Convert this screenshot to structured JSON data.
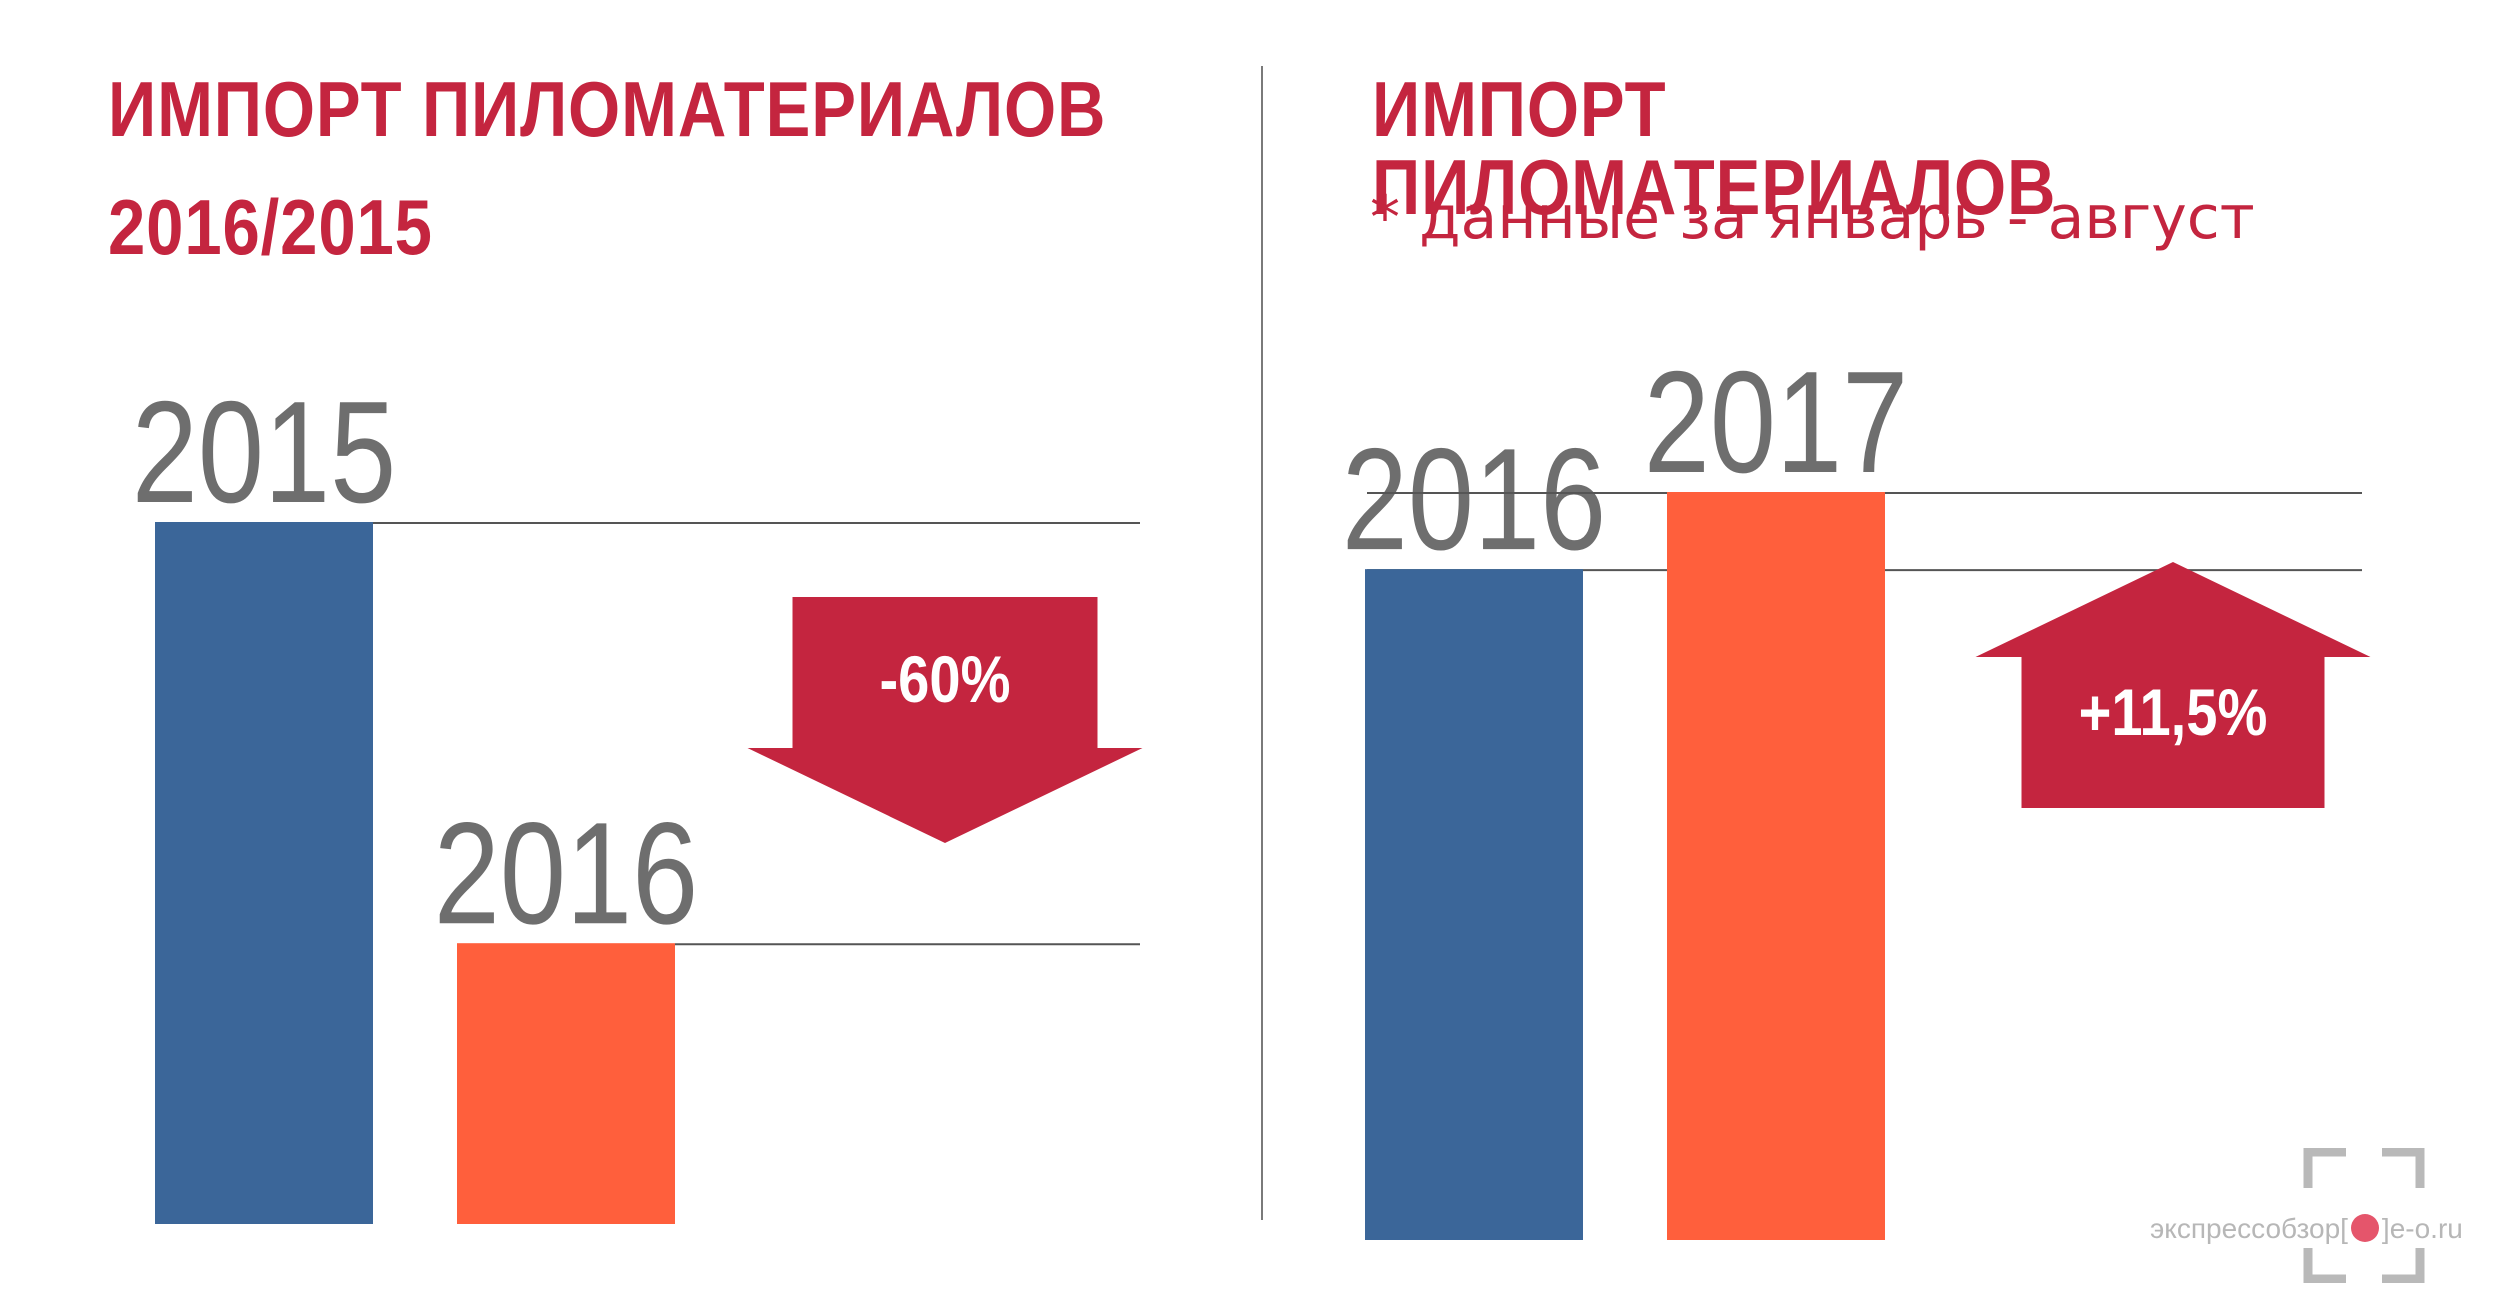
{
  "left_panel": {
    "title": "ИМПОРТ ПИЛОМАТЕРИАЛОВ",
    "title_line2": "2016/2015"
  },
  "right_panel": {
    "title": "ИМПОРТ ПИЛОМАТЕРИАЛОВ",
    "subtitle": "* данные за январь - август"
  },
  "colors": {
    "title": "#c4253f",
    "bar_previous": "#3b6699",
    "bar_current": "#ff5f3c",
    "arrow": "#c4253f",
    "bar_label": "#6e6e6e",
    "guide_line": "#555555",
    "divider": "#7a7a7a"
  },
  "chart_data": [
    {
      "type": "bar",
      "categories": [
        "2015",
        "2016"
      ],
      "values": [
        100,
        40
      ],
      "ylim": [
        0,
        100
      ],
      "change_label": "-60%",
      "change_direction": "down",
      "grid": false,
      "legend": "none"
    },
    {
      "type": "bar",
      "categories": [
        "2016",
        "2017"
      ],
      "values": [
        100,
        111.5
      ],
      "ylim": [
        0,
        111.5
      ],
      "change_label": "+11,5%",
      "change_direction": "up",
      "grid": false,
      "legend": "none"
    }
  ],
  "watermark": {
    "text_before": "экспрессобзор",
    "text_after": "e-o.ru"
  }
}
